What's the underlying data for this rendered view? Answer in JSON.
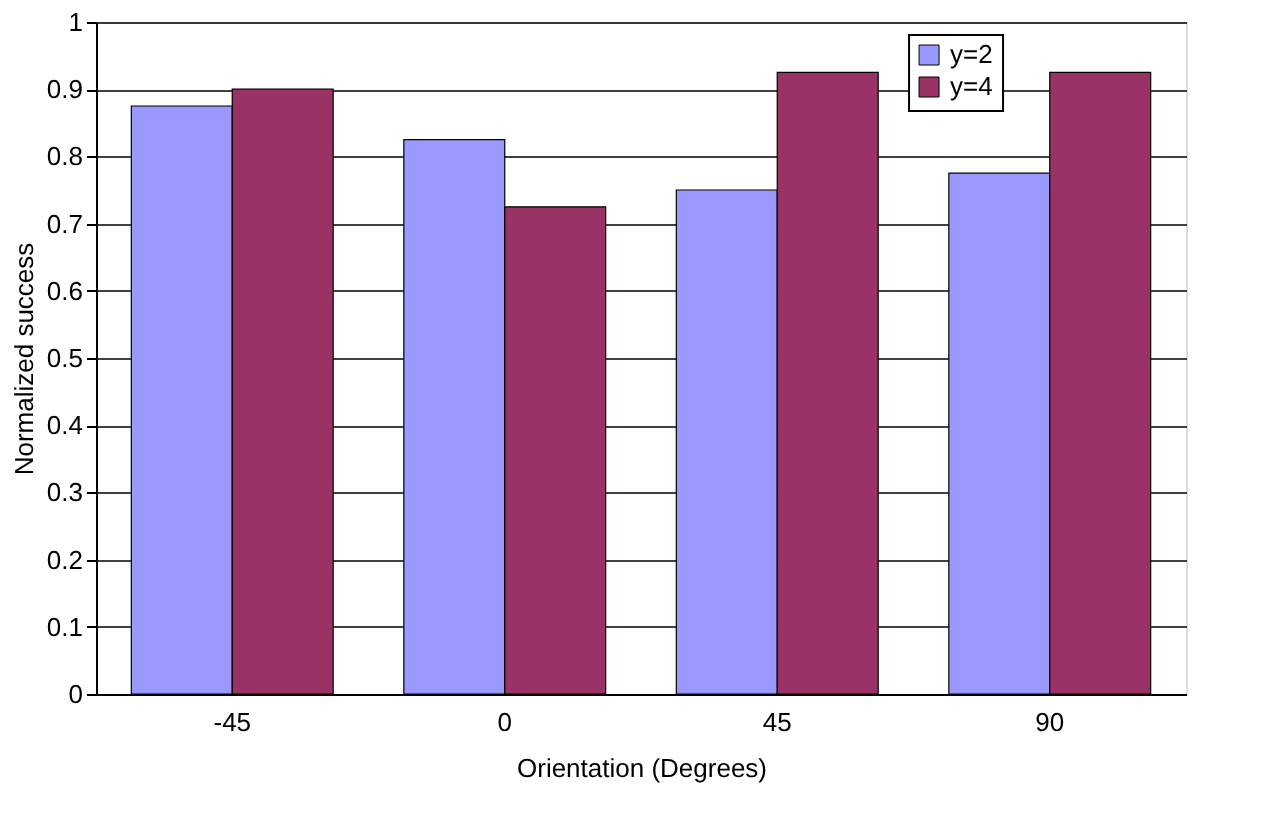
{
  "chart_data": {
    "type": "bar",
    "xlabel": "Orientation (Degrees)",
    "ylabel": "Normalized success",
    "categories": [
      "-45",
      "0",
      "45",
      "90"
    ],
    "series": [
      {
        "name": "y=2",
        "color": "#9999ff",
        "values": [
          0.875,
          0.825,
          0.75,
          0.775
        ]
      },
      {
        "name": "y=4",
        "color": "#993366",
        "values": [
          0.9,
          0.725,
          0.925,
          0.925
        ]
      }
    ],
    "ylim": [
      0,
      1
    ],
    "yticks": [
      0,
      0.1,
      0.2,
      0.3,
      0.4,
      0.5,
      0.6,
      0.7,
      0.8,
      0.9,
      1
    ],
    "grid": "y",
    "legend": "top right"
  }
}
